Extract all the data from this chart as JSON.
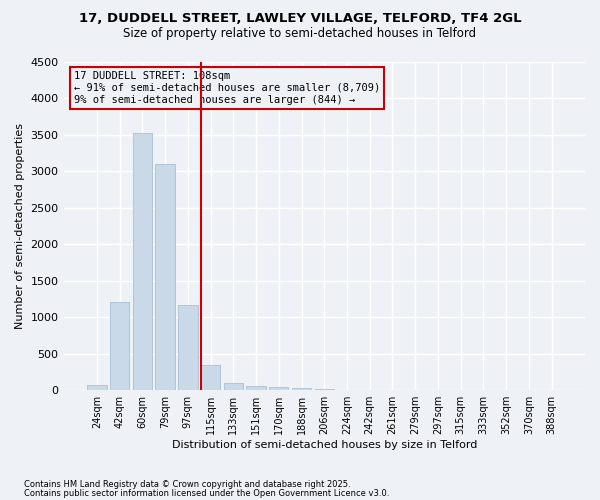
{
  "title": "17, DUDDELL STREET, LAWLEY VILLAGE, TELFORD, TF4 2GL",
  "subtitle": "Size of property relative to semi-detached houses in Telford",
  "xlabel": "Distribution of semi-detached houses by size in Telford",
  "ylabel": "Number of semi-detached properties",
  "footnote1": "Contains HM Land Registry data © Crown copyright and database right 2025.",
  "footnote2": "Contains public sector information licensed under the Open Government Licence v3.0.",
  "annotation_title": "17 DUDDELL STREET: 108sqm",
  "annotation_line1": "← 91% of semi-detached houses are smaller (8,709)",
  "annotation_line2": "9% of semi-detached houses are larger (844) →",
  "bar_color": "#c9d9e8",
  "bar_edge_color": "#a0b8d0",
  "vline_color": "#cc0000",
  "annotation_box_edge": "#cc0000",
  "background_color": "#eef2f7",
  "grid_color": "#ffffff",
  "categories": [
    "24sqm",
    "42sqm",
    "60sqm",
    "79sqm",
    "97sqm",
    "115sqm",
    "133sqm",
    "151sqm",
    "170sqm",
    "188sqm",
    "206sqm",
    "224sqm",
    "242sqm",
    "261sqm",
    "279sqm",
    "297sqm",
    "315sqm",
    "333sqm",
    "352sqm",
    "370sqm",
    "388sqm"
  ],
  "values": [
    75,
    1210,
    3520,
    3100,
    1160,
    340,
    105,
    60,
    40,
    25,
    10,
    5,
    3,
    2,
    2,
    1,
    1,
    1,
    1,
    1,
    1
  ],
  "vline_index": 4.575,
  "ylim": [
    0,
    4500
  ],
  "yticks": [
    0,
    500,
    1000,
    1500,
    2000,
    2500,
    3000,
    3500,
    4000,
    4500
  ]
}
